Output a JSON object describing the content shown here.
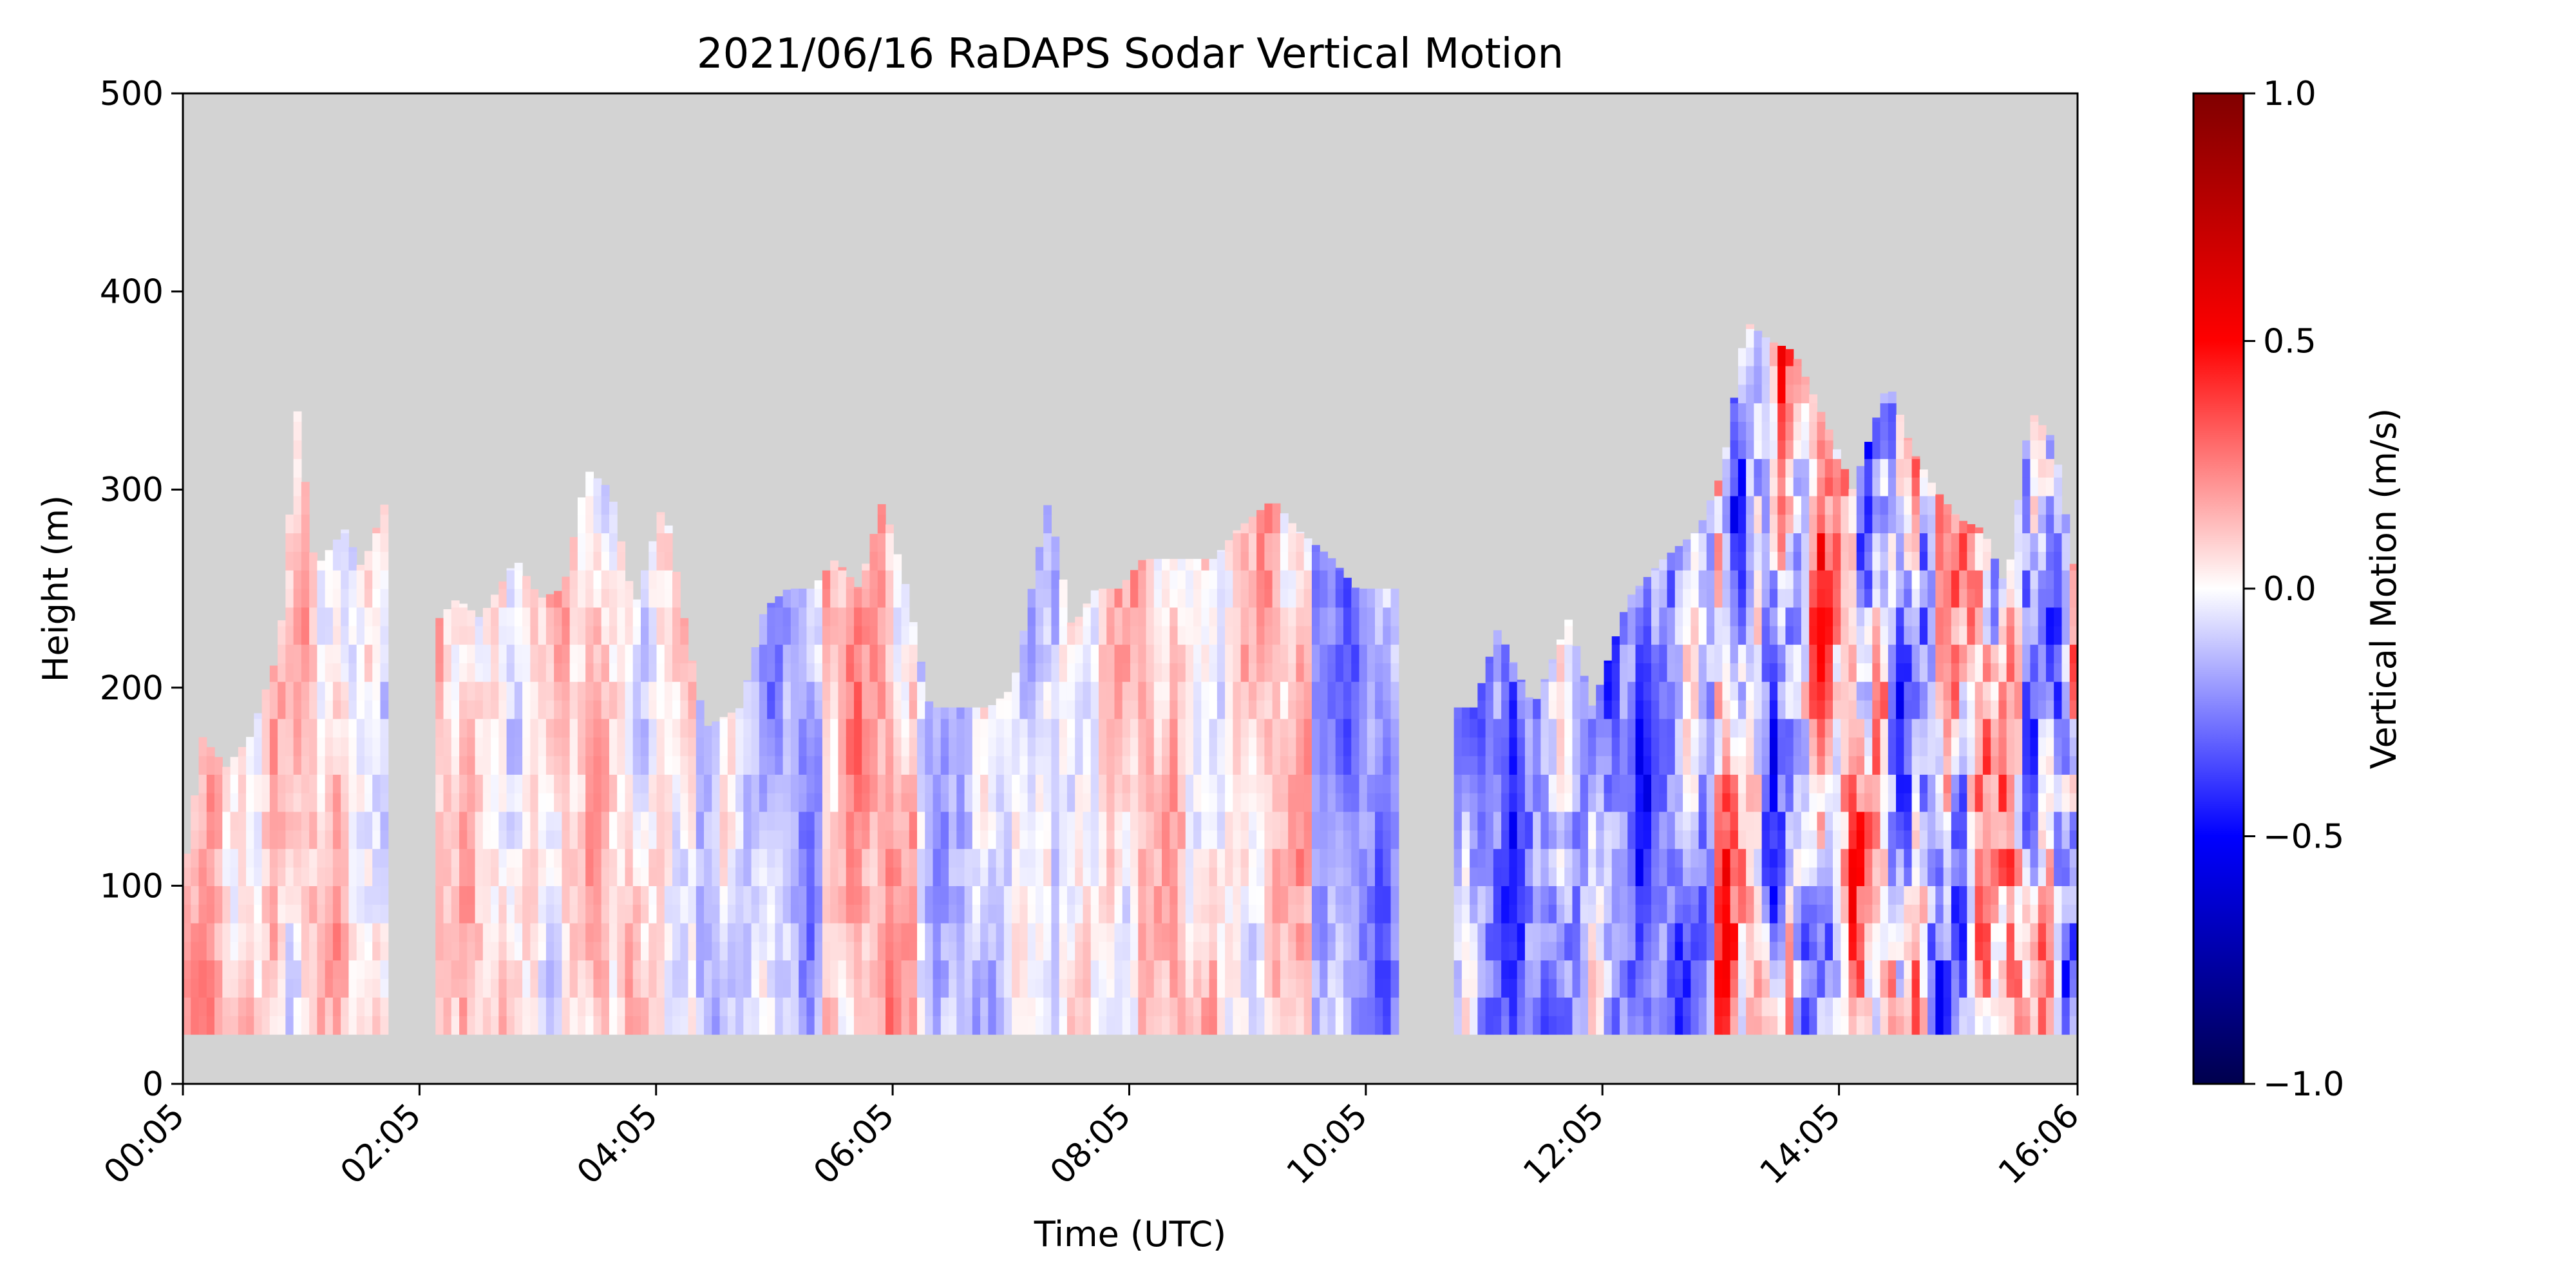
{
  "chart_data": {
    "type": "heatmap",
    "title": "2021/06/16 RaDAPS Sodar Vertical Motion",
    "xlabel": "Time (UTC)",
    "ylabel": "Height (m)",
    "x_tick_labels": [
      "00:05",
      "02:05",
      "04:05",
      "06:05",
      "08:05",
      "10:05",
      "12:05",
      "14:05",
      "16:06"
    ],
    "x_ticks_hours": [
      0.0833,
      2.0833,
      4.0833,
      6.0833,
      8.0833,
      10.0833,
      12.0833,
      14.0833,
      16.1
    ],
    "xlim_hours": [
      0.0833,
      16.1
    ],
    "ylim": [
      0,
      500
    ],
    "y_ticks": [
      0,
      100,
      200,
      300,
      400,
      500
    ],
    "missing_color": "#d3d3d3",
    "colorbar": {
      "label": "Vertical Motion (m/s)",
      "colormap": "seismic",
      "range": [
        -1.0,
        1.0
      ],
      "ticks": [
        -1.0,
        -0.5,
        0.0,
        0.5,
        1.0
      ],
      "tick_labels": [
        "−1.0",
        "−0.5",
        "0.0",
        "0.5",
        "1.0"
      ]
    },
    "lowest_gate_m": 25,
    "data_gaps_hours": [
      [
        1.85,
        2.25
      ],
      [
        10.35,
        10.85
      ]
    ],
    "profile_top_height_m": {
      "time_hours": [
        0.08,
        0.25,
        0.45,
        0.65,
        0.9,
        1.05,
        1.2,
        1.45,
        1.6,
        1.8,
        1.85,
        2.25,
        2.4,
        2.6,
        2.9,
        3.1,
        3.3,
        3.5,
        3.7,
        3.9,
        4.15,
        4.35,
        4.5,
        4.8,
        5.0,
        5.2,
        5.4,
        5.6,
        5.8,
        6.0,
        6.2,
        6.4,
        6.6,
        6.9,
        7.1,
        7.4,
        7.6,
        7.8,
        8.0,
        8.2,
        8.5,
        8.8,
        9.0,
        9.3,
        9.5,
        9.8,
        10.0,
        10.35,
        10.85,
        11.0,
        11.2,
        11.5,
        11.8,
        12.0,
        12.3,
        12.6,
        12.9,
        13.1,
        13.3,
        13.5,
        13.7,
        14.0,
        14.2,
        14.5,
        14.7,
        14.9,
        15.1,
        15.3,
        15.5,
        15.7,
        15.9,
        16.1
      ],
      "top_m": [
        100,
        175,
        160,
        175,
        220,
        340,
        260,
        280,
        260,
        295,
        250,
        235,
        245,
        235,
        265,
        245,
        250,
        310,
        300,
        240,
        295,
        225,
        180,
        190,
        240,
        250,
        250,
        265,
        250,
        295,
        250,
        190,
        190,
        190,
        200,
        295,
        230,
        250,
        250,
        265,
        265,
        265,
        280,
        295,
        280,
        265,
        250,
        250,
        190,
        190,
        230,
        190,
        235,
        190,
        245,
        265,
        280,
        310,
        385,
        375,
        370,
        330,
        300,
        355,
        320,
        300,
        285,
        280,
        250,
        340,
        325,
        250
      ]
    },
    "cells_per_axis": {
      "time": 240,
      "height": 40
    }
  }
}
